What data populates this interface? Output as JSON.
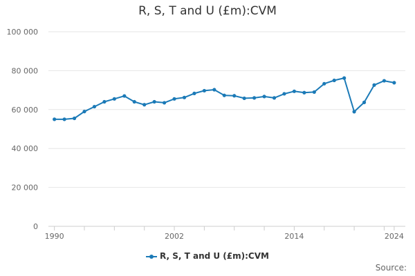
{
  "title": "R, S, T and U (£m):CVM",
  "source_label": "Source:",
  "colors": {
    "series": "#1b7ab7",
    "grid": "#e6e6e6",
    "axis": "#cccccc"
  },
  "chart_data": {
    "type": "line",
    "title": "R, S, T and U (£m):CVM",
    "xlabel": "",
    "ylabel": "",
    "ylim": [
      0,
      100000
    ],
    "y_ticks": [
      0,
      20000,
      40000,
      60000,
      80000,
      100000
    ],
    "y_tick_labels": [
      "0",
      "20 000",
      "40 000",
      "60 000",
      "80 000",
      "100 000"
    ],
    "x_ticks": [
      1990,
      2002,
      2014,
      2024
    ],
    "x_tick_labels": [
      "1990",
      "2002",
      "2014",
      "2024"
    ],
    "grid": true,
    "legend_position": "bottom",
    "series": [
      {
        "name": "R, S, T and U (£m):CVM",
        "x": [
          1990,
          1991,
          1992,
          1993,
          1994,
          1995,
          1996,
          1997,
          1998,
          1999,
          2000,
          2001,
          2002,
          2003,
          2004,
          2005,
          2006,
          2007,
          2008,
          2009,
          2010,
          2011,
          2012,
          2013,
          2014,
          2015,
          2016,
          2017,
          2018,
          2019,
          2020,
          2021,
          2022,
          2023,
          2024
        ],
        "values": [
          55000,
          55000,
          55500,
          59000,
          61500,
          64000,
          65500,
          67000,
          64000,
          62500,
          64000,
          63500,
          65500,
          66200,
          68300,
          69700,
          70200,
          67300,
          67100,
          65800,
          66000,
          66700,
          66000,
          68100,
          69400,
          68700,
          69000,
          73300,
          75000,
          76200,
          58900,
          63700,
          72600,
          74800,
          73800
        ]
      }
    ]
  }
}
